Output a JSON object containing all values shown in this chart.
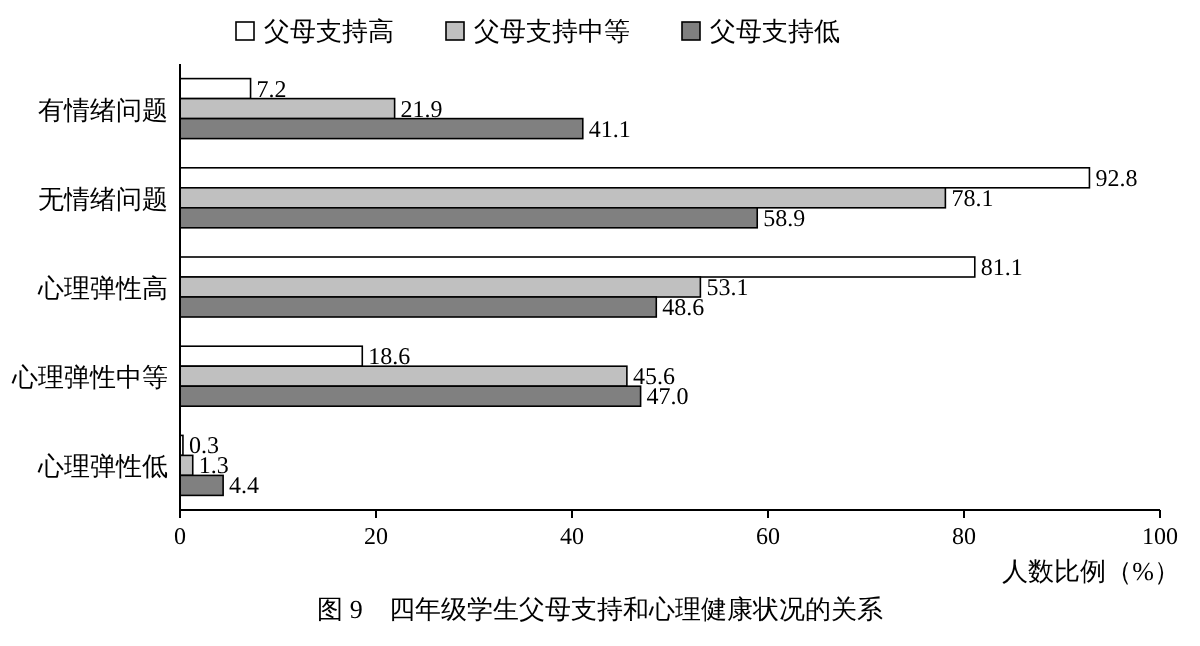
{
  "chart_data": {
    "type": "bar",
    "orientation": "horizontal",
    "categories": [
      "有情绪问题",
      "无情绪问题",
      "心理弹性高",
      "心理弹性中等",
      "心理弹性低"
    ],
    "series": [
      {
        "name": "父母支持高",
        "color": "#ffffff",
        "values": [
          7.2,
          92.8,
          81.1,
          18.6,
          0.3
        ],
        "value_labels": [
          "7.2",
          "92.8",
          "81.1",
          "18.6",
          "0.3"
        ]
      },
      {
        "name": "父母支持中等",
        "color": "#c0c0c0",
        "values": [
          21.9,
          78.1,
          53.1,
          45.6,
          1.3
        ],
        "value_labels": [
          "21.9",
          "78.1",
          "53.1",
          "45.6",
          "1.3"
        ]
      },
      {
        "name": "父母支持低",
        "color": "#808080",
        "values": [
          41.1,
          58.9,
          48.6,
          47.0,
          4.4
        ],
        "value_labels": [
          "41.1",
          "58.9",
          "48.6",
          "47.0",
          "4.4"
        ]
      }
    ],
    "xlim": [
      0,
      100
    ],
    "xticks": [
      0,
      20,
      40,
      60,
      80,
      100
    ],
    "xlabel": "人数比例（%）",
    "title": "图 9　四年级学生父母支持和心理健康状况的关系",
    "legend": "top",
    "grid": false
  }
}
